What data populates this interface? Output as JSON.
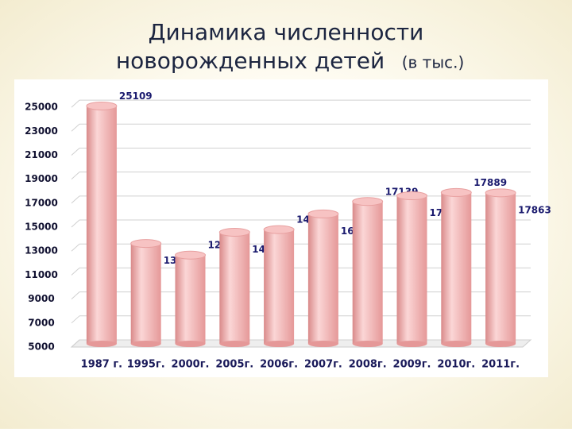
{
  "title_lines": [
    "Динамика численности",
    "новорожденных детей"
  ],
  "title_note": "(в тыс.)",
  "chart_data": {
    "type": "bar",
    "categories": [
      "1987 г.",
      "1995г.",
      "2000г.",
      "2005г.",
      "2006г.",
      "2007г.",
      "2008г.",
      "2009г.",
      "2010г.",
      "2011г."
    ],
    "values": [
      25109,
      13638,
      12668,
      14574,
      14796,
      16101,
      17139,
      17616,
      17889,
      17863
    ],
    "color": "#f2a8a8",
    "ylim": [
      5000,
      26000
    ],
    "yticks": [
      5000,
      7000,
      9000,
      11000,
      13000,
      15000,
      17000,
      19000,
      21000,
      23000,
      25000
    ],
    "grid": true
  }
}
